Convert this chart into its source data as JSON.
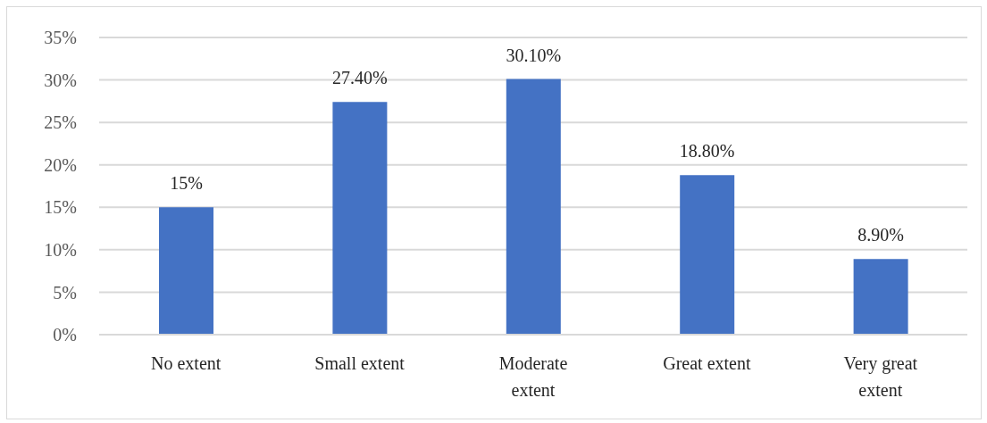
{
  "chart_data": {
    "type": "bar",
    "categories": [
      "No extent",
      "Small extent",
      "Moderate extent",
      "Great extent",
      "Very great extent"
    ],
    "values": [
      15,
      27.4,
      30.1,
      18.8,
      8.9
    ],
    "color": "#4472c4",
    "ylim": [
      0,
      35
    ],
    "yticks": [
      {
        "value": 0,
        "label": "0%"
      },
      {
        "value": 5,
        "label": "5%"
      },
      {
        "value": 10,
        "label": "10%"
      },
      {
        "value": 15,
        "label": "15%"
      },
      {
        "value": 20,
        "label": "20%"
      },
      {
        "value": 25,
        "label": "25%"
      },
      {
        "value": 30,
        "label": "30%"
      },
      {
        "value": 35,
        "label": "35%"
      }
    ],
    "grid": "y",
    "value_labels": [
      "15%",
      "27.40%",
      "30.10%",
      "18.80%",
      "8.90%"
    ]
  }
}
